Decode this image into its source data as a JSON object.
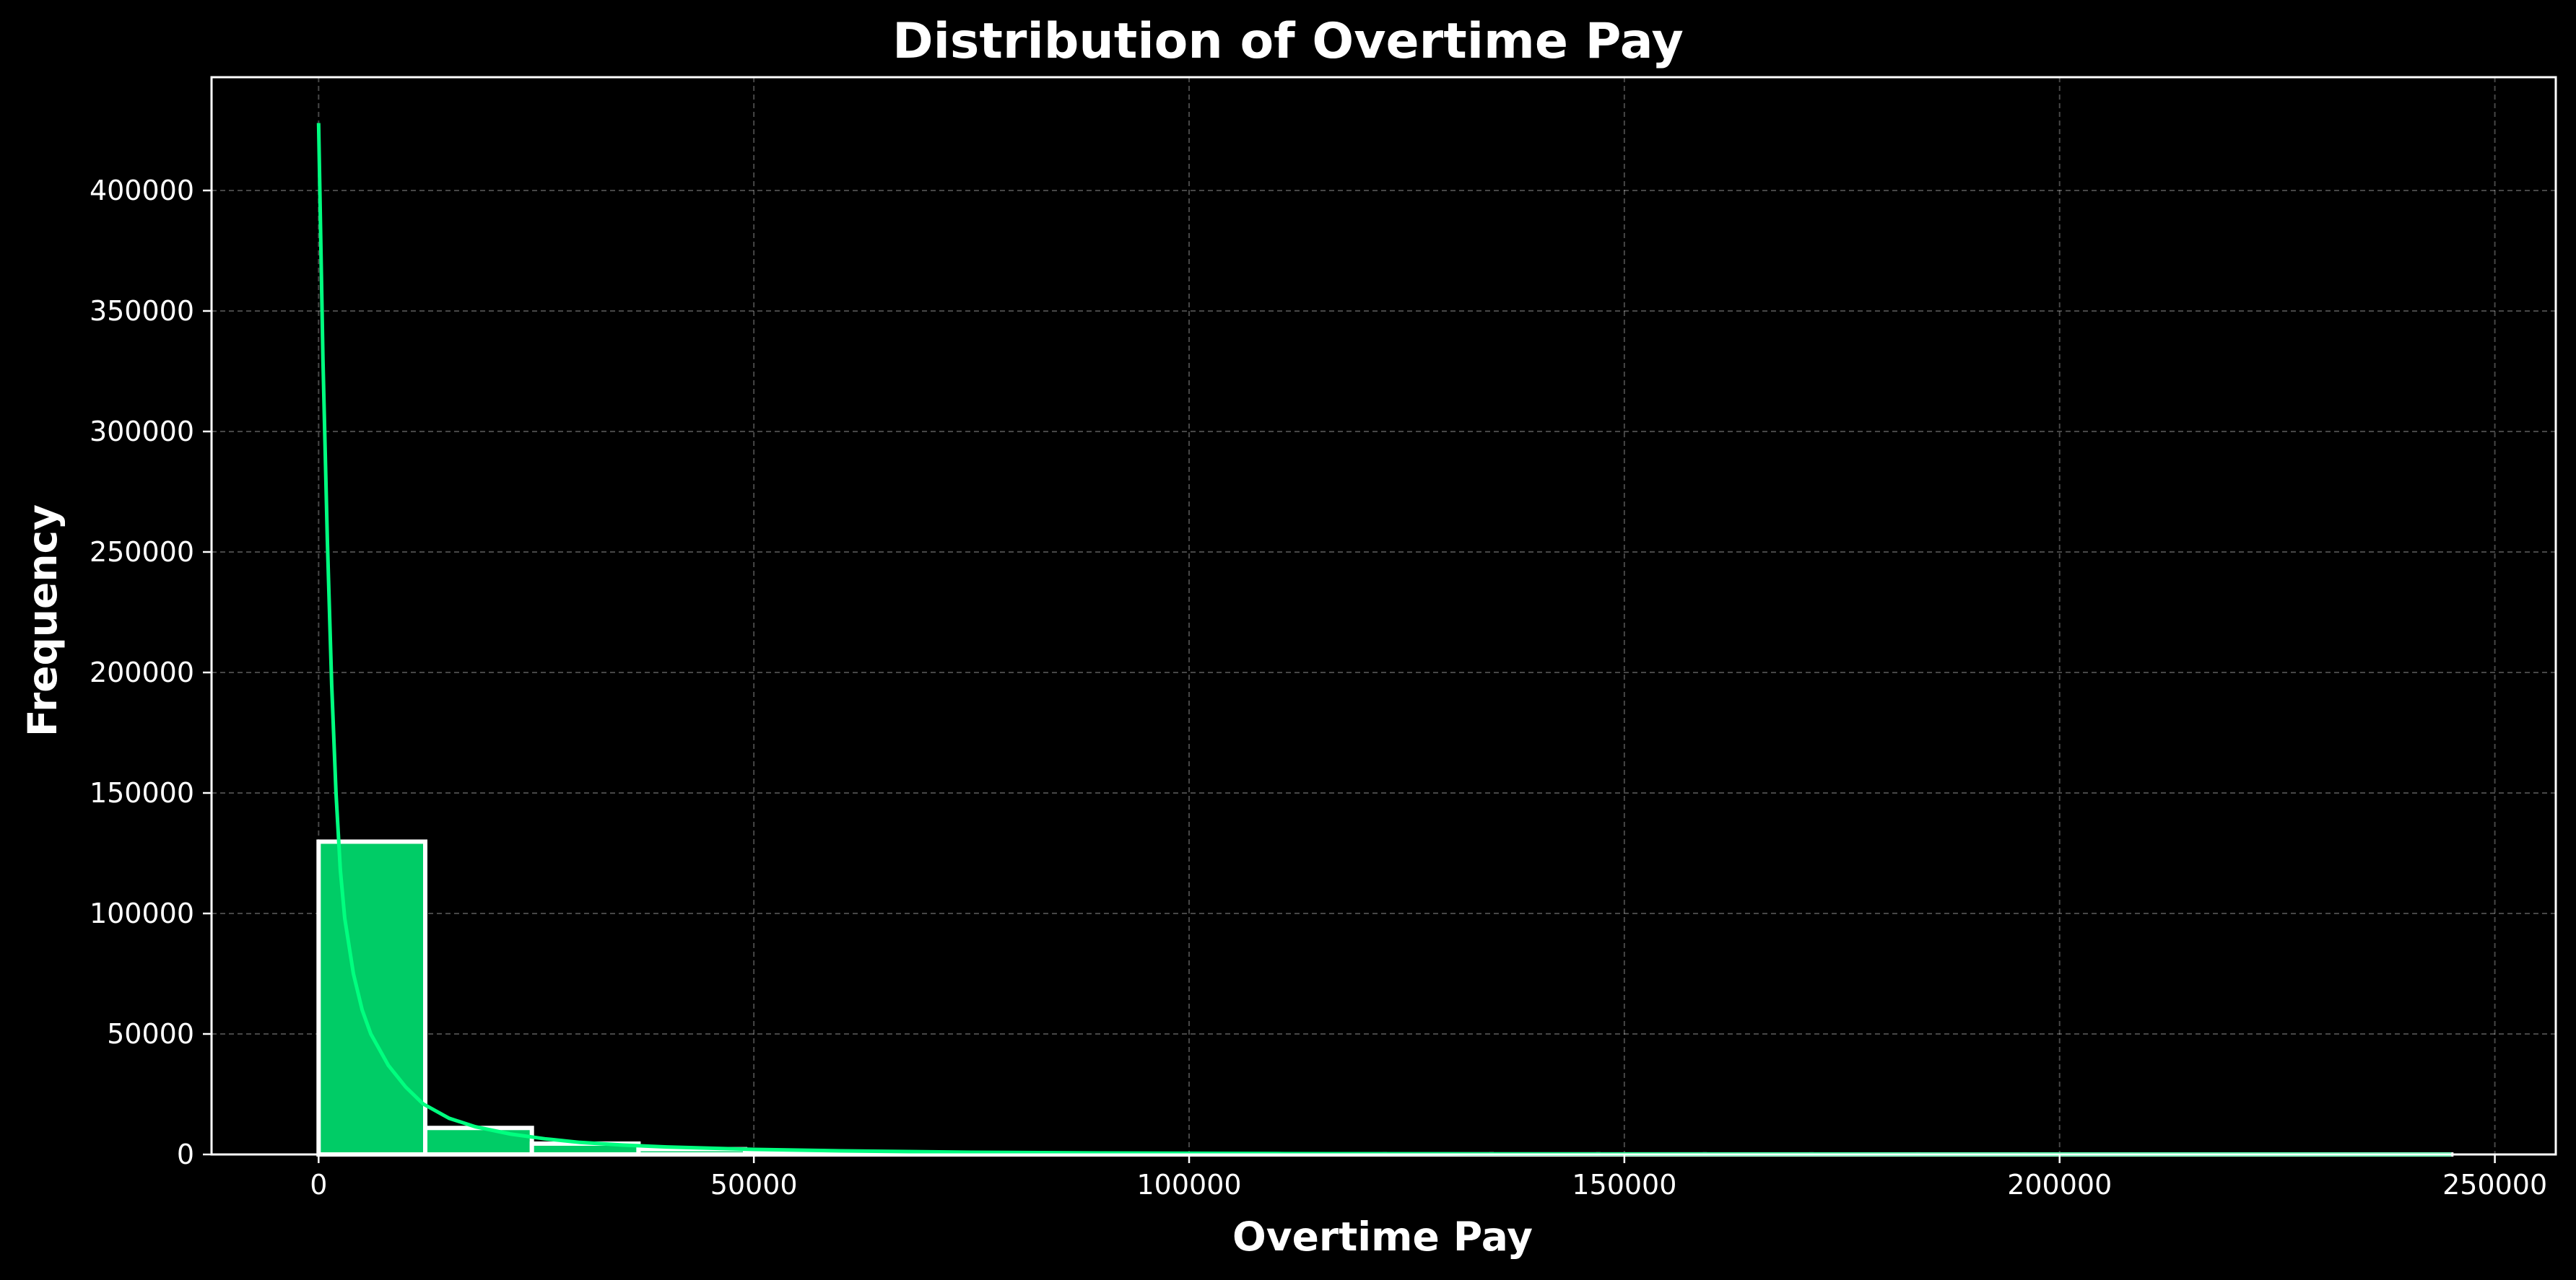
{
  "chart_data": {
    "type": "bar",
    "title": "Distribution of Overtime Pay",
    "xlabel": "Overtime Pay",
    "ylabel": "Frequency",
    "xlim": [
      -12300,
      257000
    ],
    "ylim": [
      0,
      447000
    ],
    "x_ticks": [
      0,
      50000,
      100000,
      150000,
      200000,
      250000
    ],
    "y_ticks": [
      0,
      50000,
      100000,
      150000,
      200000,
      250000,
      300000,
      350000,
      400000
    ],
    "grid": true,
    "bar_color": "#00cc66",
    "bar_edge_color": "#ffffff",
    "kde_color": "#00ff7f",
    "background": "#000000",
    "bins": [
      {
        "x0": 0,
        "x1": 12250,
        "count": 129800
      },
      {
        "x0": 12250,
        "x1": 24500,
        "count": 11000
      },
      {
        "x0": 24500,
        "x1": 36750,
        "count": 4500
      },
      {
        "x0": 36750,
        "x1": 49000,
        "count": 2200
      },
      {
        "x0": 49000,
        "x1": 61250,
        "count": 1200
      },
      {
        "x0": 61250,
        "x1": 73500,
        "count": 700
      },
      {
        "x0": 73500,
        "x1": 85750,
        "count": 400
      },
      {
        "x0": 85750,
        "x1": 98000,
        "count": 250
      },
      {
        "x0": 98000,
        "x1": 110250,
        "count": 160
      },
      {
        "x0": 110250,
        "x1": 122500,
        "count": 100
      },
      {
        "x0": 122500,
        "x1": 134750,
        "count": 70
      },
      {
        "x0": 134750,
        "x1": 147000,
        "count": 50
      },
      {
        "x0": 147000,
        "x1": 159250,
        "count": 35
      },
      {
        "x0": 159250,
        "x1": 171500,
        "count": 25
      },
      {
        "x0": 171500,
        "x1": 183750,
        "count": 18
      },
      {
        "x0": 183750,
        "x1": 196000,
        "count": 12
      },
      {
        "x0": 196000,
        "x1": 208250,
        "count": 8
      },
      {
        "x0": 208250,
        "x1": 220500,
        "count": 6
      },
      {
        "x0": 220500,
        "x1": 232750,
        "count": 4
      },
      {
        "x0": 232750,
        "x1": 245000,
        "count": 3
      }
    ],
    "kde": [
      [
        0,
        428000
      ],
      [
        500,
        330000
      ],
      [
        1000,
        255000
      ],
      [
        1500,
        195000
      ],
      [
        2000,
        150000
      ],
      [
        2500,
        118000
      ],
      [
        3000,
        98000
      ],
      [
        4000,
        75000
      ],
      [
        5000,
        60000
      ],
      [
        6000,
        50000
      ],
      [
        8000,
        37000
      ],
      [
        10000,
        28000
      ],
      [
        12000,
        21000
      ],
      [
        15000,
        15000
      ],
      [
        18000,
        11500
      ],
      [
        22000,
        8500
      ],
      [
        26000,
        6500
      ],
      [
        30000,
        5000
      ],
      [
        35000,
        3900
      ],
      [
        40000,
        3100
      ],
      [
        50000,
        2100
      ],
      [
        60000,
        1500
      ],
      [
        75000,
        900
      ],
      [
        90000,
        600
      ],
      [
        110000,
        350
      ],
      [
        130000,
        200
      ],
      [
        150000,
        120
      ],
      [
        175000,
        70
      ],
      [
        200000,
        40
      ],
      [
        225000,
        20
      ],
      [
        245000,
        10
      ]
    ]
  }
}
